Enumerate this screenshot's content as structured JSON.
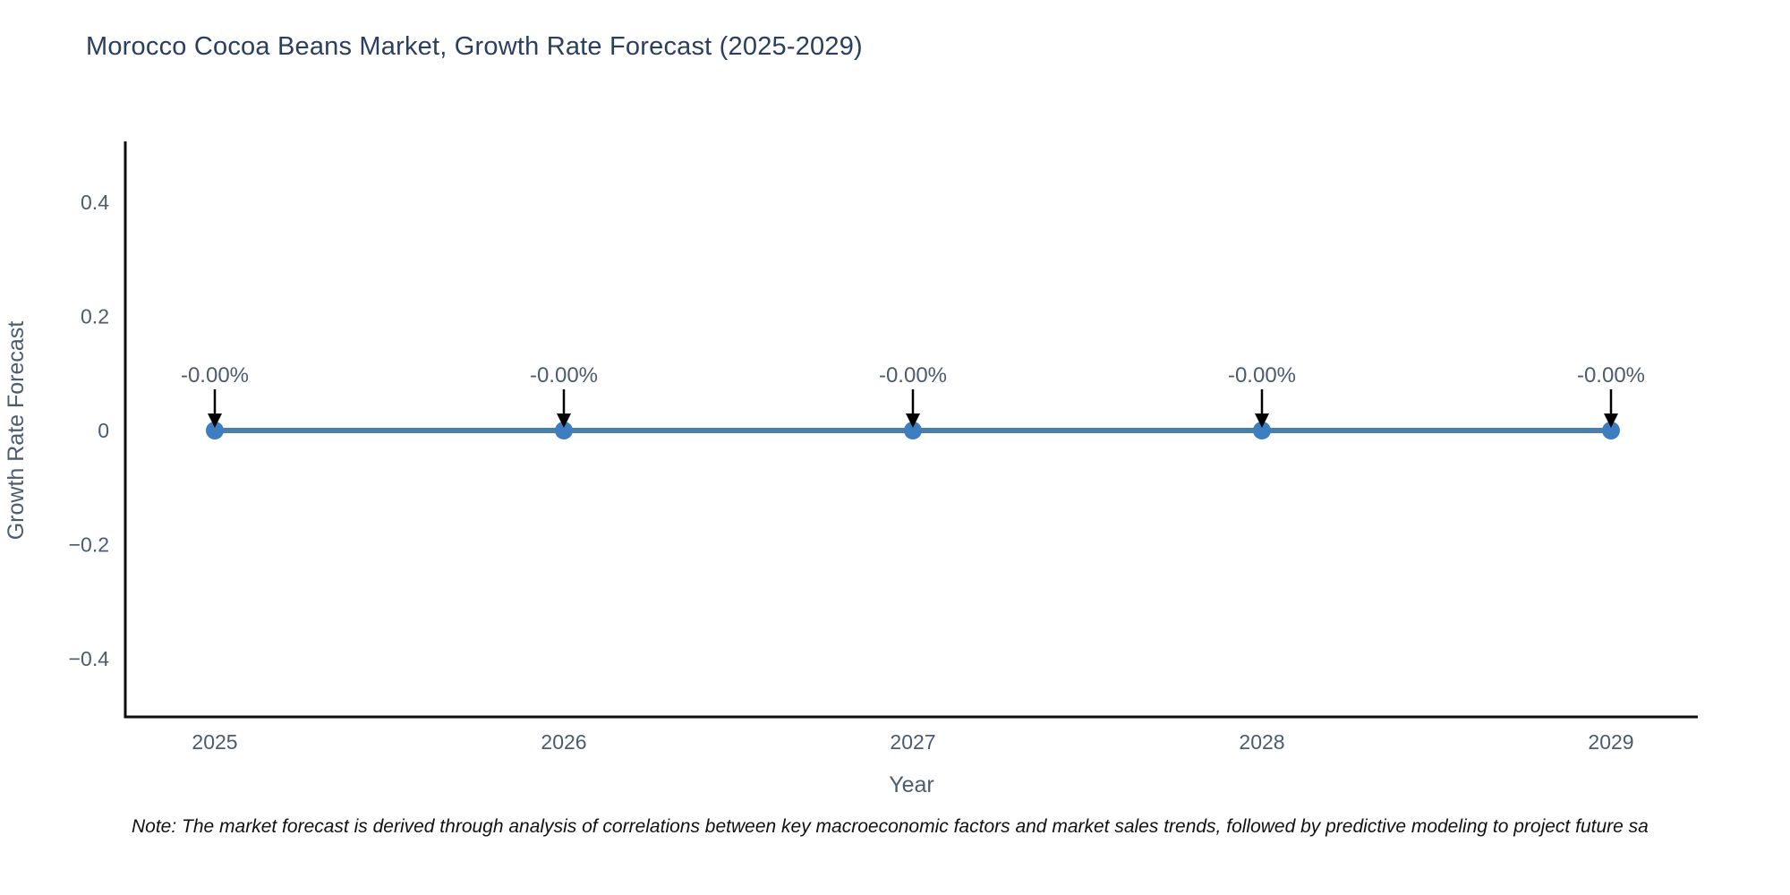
{
  "title": "Morocco Cocoa Beans Market, Growth Rate Forecast (2025-2029)",
  "note": "Note: The market forecast is derived through analysis of correlations between key macroeconomic factors and market sales trends, followed by predictive modeling to project future sa",
  "chart_data": {
    "type": "line",
    "title": "Morocco Cocoa Beans Market, Growth Rate Forecast (2025-2029)",
    "xlabel": "Year",
    "ylabel": "Growth Rate Forecast",
    "x": [
      2025,
      2026,
      2027,
      2028,
      2029
    ],
    "series": [
      {
        "name": "Growth Rate Forecast",
        "values": [
          0,
          0,
          0,
          0,
          0
        ]
      }
    ],
    "point_labels": [
      "-0.00%",
      "-0.00%",
      "-0.00%",
      "-0.00%",
      "-0.00%"
    ],
    "x_tick_labels": [
      "2025",
      "2026",
      "2027",
      "2028",
      "2029"
    ],
    "y_ticks": {
      "values": [
        0.4,
        0.2,
        0,
        -0.2,
        -0.4
      ],
      "labels": [
        "0.4",
        "0.2",
        "0",
        "−0.2",
        "−0.4"
      ]
    },
    "ylim": [
      -0.49,
      0.51
    ],
    "grid": false,
    "legend": "none",
    "annotations_have_arrows": true,
    "colors": {
      "line": "#4c7fa8",
      "marker": "#3c7ebf",
      "axis_line": "#0d0d0d",
      "tick_text": "#4c5a72",
      "axis_title_text": "#4c5a72",
      "annotation_text": "#4c5a72",
      "arrow": "#000000",
      "title_text": "#2a3f5f",
      "background": "#ffffff"
    }
  }
}
